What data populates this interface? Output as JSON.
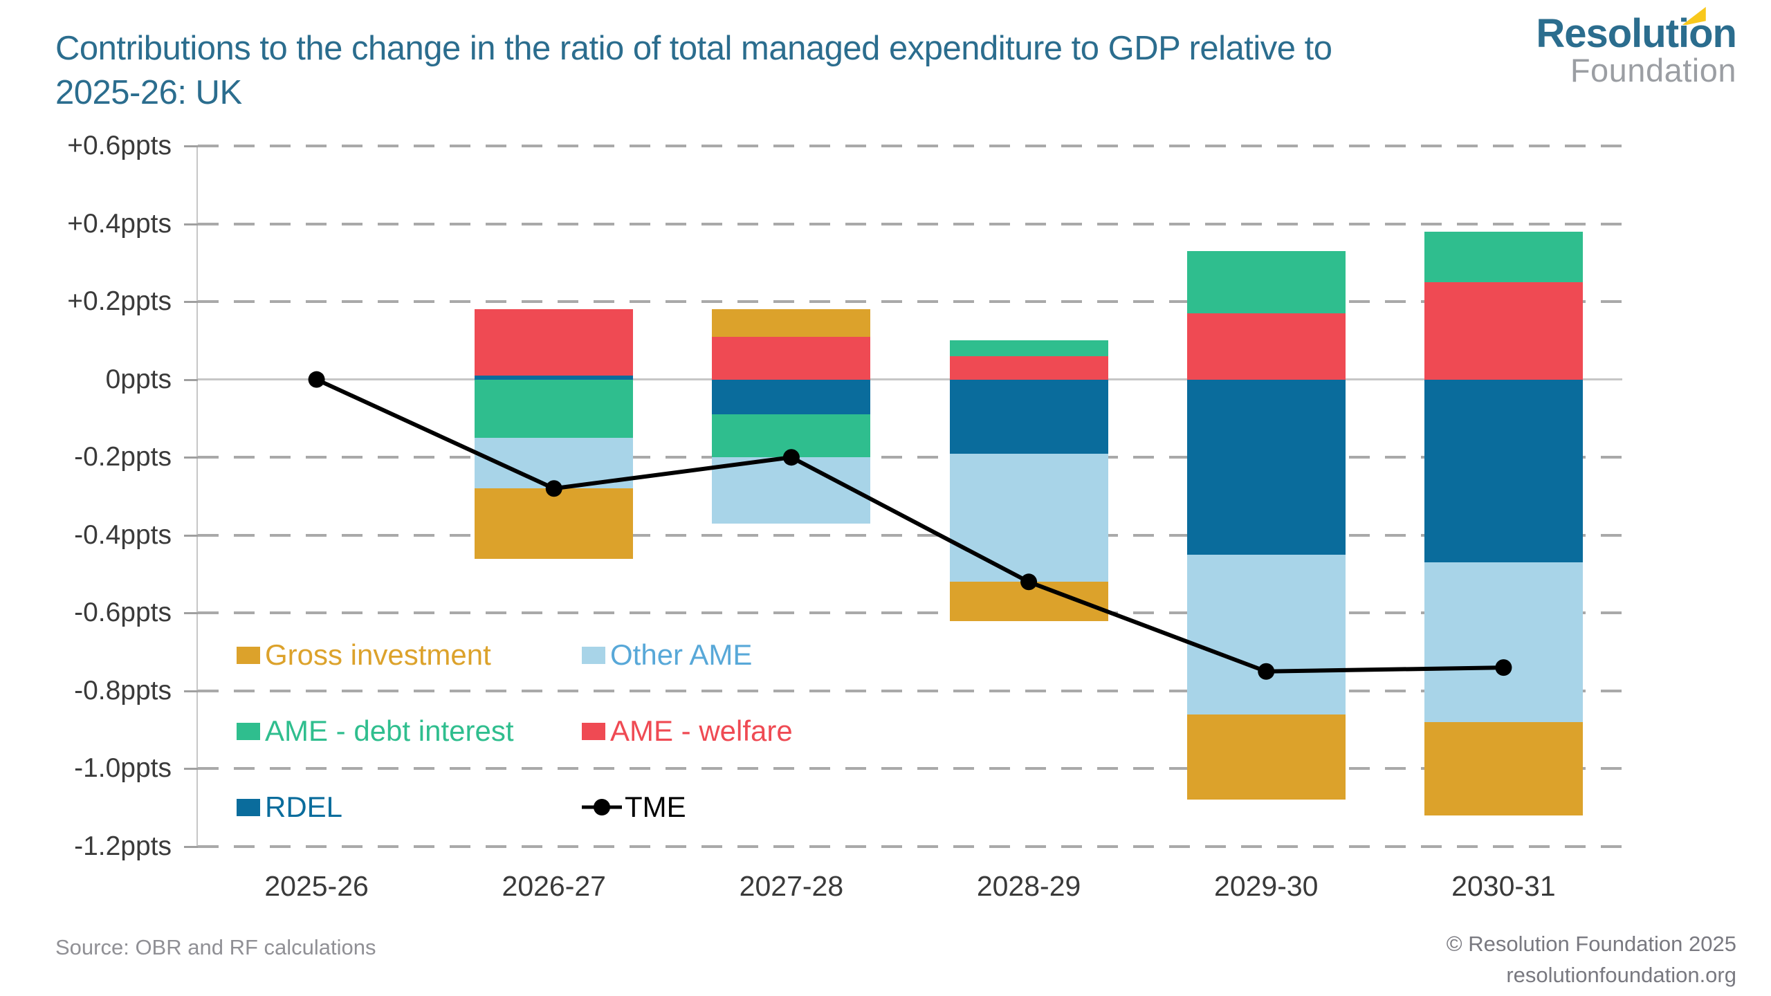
{
  "header": {
    "title_line1": "Contributions to the change in the ratio of total managed expenditure to GDP relative to",
    "title_line2": "2025-26: UK",
    "title_color": "#2B6D8E"
  },
  "logo": {
    "primary": "Resolution",
    "secondary": "Foundation",
    "primary_color": "#2B6D8E",
    "secondary_color": "#9B9EA3",
    "accent_color": "#F8C81C"
  },
  "footer": {
    "source": "Source: OBR and RF calculations",
    "copyright": "© Resolution Foundation 2025",
    "website": "resolutionfoundation.org"
  },
  "chart_data": {
    "type": "bar",
    "subtype": "stacked-bar-with-line",
    "unit": "ppts",
    "ylim": [
      -1.2,
      0.6
    ],
    "grid": "dashed horizontal every 0.2ppts, solid zero line",
    "legend_position": "inside bottom-left, 3 rows x 2 cols",
    "categories": [
      "2025-26",
      "2026-27",
      "2027-28",
      "2028-29",
      "2029-30",
      "2030-31"
    ],
    "stacking_note": "series listed in stack order from zero outward",
    "series": [
      {
        "name": "RDEL",
        "color": "#0A6C9C",
        "values": [
          0,
          0.01,
          -0.09,
          -0.19,
          -0.45,
          -0.47
        ]
      },
      {
        "name": "AME - welfare",
        "color": "#EF4A53",
        "values": [
          0,
          0.17,
          0.11,
          0.06,
          0.17,
          0.25
        ]
      },
      {
        "name": "AME - debt interest",
        "color": "#2FBE8E",
        "values": [
          0,
          -0.15,
          -0.11,
          0.04,
          0.16,
          0.13
        ]
      },
      {
        "name": "Other AME",
        "color": "#A8D4E8",
        "values": [
          0,
          -0.13,
          -0.17,
          -0.33,
          -0.41,
          -0.41
        ]
      },
      {
        "name": "Gross investment",
        "color": "#DCA22B",
        "values": [
          0,
          -0.18,
          0.07,
          -0.1,
          -0.22,
          -0.24
        ]
      }
    ],
    "line_series": {
      "name": "TME",
      "color": "#000000",
      "values": [
        0,
        -0.28,
        -0.2,
        -0.52,
        -0.75,
        -0.74
      ]
    },
    "y_axis": {
      "ticks": [
        {
          "label": "+0.6ppts",
          "value": 0.6
        },
        {
          "label": "+0.4ppts",
          "value": 0.4
        },
        {
          "label": "+0.2ppts",
          "value": 0.2
        },
        {
          "label": "0ppts",
          "value": 0.0
        },
        {
          "label": "-0.2ppts",
          "value": -0.2
        },
        {
          "label": "-0.4ppts",
          "value": -0.4
        },
        {
          "label": "-0.6ppts",
          "value": -0.6
        },
        {
          "label": "-0.8ppts",
          "value": -0.8
        },
        {
          "label": "-1.0ppts",
          "value": -1.0
        },
        {
          "label": "-1.2ppts",
          "value": -1.2
        }
      ]
    },
    "legend": [
      {
        "label": "Gross investment",
        "marker": "square",
        "swatch": "#DCA22B",
        "text_color": "#DCA22B"
      },
      {
        "label": "Other AME",
        "marker": "square",
        "swatch": "#A8D4E8",
        "text_color": "#58A8D8"
      },
      {
        "label": "AME - debt interest",
        "marker": "square",
        "swatch": "#2FBE8E",
        "text_color": "#2FBE8E"
      },
      {
        "label": "AME - welfare",
        "marker": "square",
        "swatch": "#EF4A53",
        "text_color": "#EF4A53"
      },
      {
        "label": "RDEL",
        "marker": "square",
        "swatch": "#0A6C9C",
        "text_color": "#0A6C9C"
      },
      {
        "label": "TME",
        "marker": "line-dot",
        "swatch": "#000000",
        "text_color": "#000000"
      }
    ]
  }
}
